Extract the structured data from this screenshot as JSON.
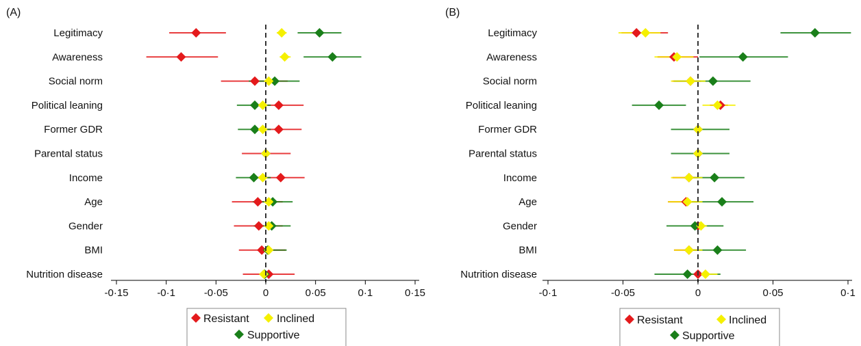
{
  "chart_data": [
    {
      "type": "scatter",
      "panel_label": "(A)",
      "rows": [
        "Legitimacy",
        "Awareness",
        "Social norm",
        "Political leaning",
        "Former GDR",
        "Parental status",
        "Income",
        "Age",
        "Gender",
        "BMI",
        "Nutrition disease"
      ],
      "xlim": [
        -0.15,
        0.15
      ],
      "xticks": [
        -0.15,
        -0.1,
        -0.05,
        0,
        0.05,
        0.1,
        0.15
      ],
      "xtick_labels": [
        "-0·15",
        "-0·1",
        "-0·05",
        "0",
        "0·05",
        "0·1",
        "0·15"
      ],
      "series": [
        {
          "name": "Resistant",
          "color": "#e41a1c",
          "values": [
            -0.07,
            -0.085,
            -0.011,
            0.013,
            0.013,
            0.0,
            0.015,
            -0.008,
            -0.007,
            -0.004,
            0.003
          ],
          "lower": [
            -0.097,
            -0.12,
            -0.045,
            -0.012,
            -0.011,
            -0.024,
            -0.009,
            -0.034,
            -0.032,
            -0.027,
            -0.023
          ],
          "upper": [
            -0.04,
            -0.048,
            0.022,
            0.038,
            0.036,
            0.025,
            0.039,
            0.017,
            0.017,
            0.02,
            0.029
          ]
        },
        {
          "name": "Inclined",
          "color": "#f5f000",
          "values": [
            0.016,
            0.019,
            0.003,
            -0.003,
            -0.003,
            0.0,
            -0.003,
            0.003,
            0.003,
            0.003,
            -0.002
          ],
          "lower": [
            0.011,
            0.014,
            0.0,
            -0.007,
            -0.007,
            -0.003,
            -0.007,
            0.0,
            0.0,
            0.0,
            -0.005
          ],
          "upper": [
            0.021,
            0.025,
            0.006,
            0.001,
            0.001,
            0.003,
            0.001,
            0.006,
            0.006,
            0.006,
            0.001
          ]
        },
        {
          "name": "Supportive",
          "color": "#1a7f1a",
          "values": [
            0.054,
            0.067,
            0.009,
            -0.011,
            -0.011,
            0.0,
            -0.012,
            0.007,
            0.006,
            0.002,
            -0.001
          ],
          "lower": [
            0.032,
            0.038,
            -0.017,
            -0.029,
            -0.028,
            -0.002,
            -0.03,
            -0.013,
            -0.012,
            -0.004,
            -0.004
          ],
          "upper": [
            0.076,
            0.096,
            0.034,
            0.005,
            0.005,
            0.002,
            0.005,
            0.027,
            0.025,
            0.021,
            0.003
          ]
        }
      ],
      "reference_line": 0,
      "legend": {
        "entries": [
          "Resistant",
          "Inclined",
          "Supportive"
        ],
        "position": "bottom"
      }
    },
    {
      "type": "scatter",
      "panel_label": "(B)",
      "rows": [
        "Legitimacy",
        "Awareness",
        "Social norm",
        "Political leaning",
        "Former GDR",
        "Parental status",
        "Income",
        "Age",
        "Gender",
        "BMI",
        "Nutrition disease"
      ],
      "xlim": [
        -0.1,
        0.1
      ],
      "xticks": [
        -0.1,
        -0.05,
        0,
        0.05,
        0.1
      ],
      "xtick_labels": [
        "-0·1",
        "-0·05",
        "0",
        "0·05",
        "0·1"
      ],
      "series": [
        {
          "name": "Resistant",
          "color": "#e41a1c",
          "values": [
            -0.041,
            -0.016,
            -0.005,
            0.015,
            0.0,
            0.0,
            -0.006,
            -0.008,
            0.0,
            -0.006,
            0.0
          ],
          "lower": [
            -0.051,
            -0.027,
            -0.017,
            0.008,
            -0.002,
            -0.002,
            -0.017,
            -0.02,
            -0.002,
            -0.016,
            -0.002
          ],
          "upper": [
            -0.02,
            0.0,
            0.002,
            0.02,
            0.002,
            0.002,
            0.0,
            0.0,
            0.002,
            0.0,
            0.002
          ]
        },
        {
          "name": "Inclined",
          "color": "#f5f000",
          "values": [
            -0.035,
            -0.014,
            -0.005,
            0.013,
            0.0,
            0.0,
            -0.006,
            -0.007,
            0.002,
            -0.006,
            0.005
          ],
          "lower": [
            -0.053,
            -0.029,
            -0.018,
            0.003,
            -0.002,
            -0.002,
            -0.018,
            -0.02,
            -0.002,
            -0.016,
            -0.002
          ],
          "upper": [
            -0.025,
            -0.003,
            0.005,
            0.025,
            0.002,
            0.002,
            0.003,
            0.003,
            0.006,
            0.003,
            0.013
          ]
        },
        {
          "name": "Supportive",
          "color": "#1a7f1a",
          "values": [
            0.078,
            0.03,
            0.01,
            -0.026,
            0.0,
            0.0,
            0.011,
            0.016,
            -0.002,
            0.013,
            -0.007
          ],
          "lower": [
            0.055,
            0.001,
            -0.016,
            -0.044,
            -0.018,
            -0.018,
            -0.009,
            -0.007,
            -0.021,
            -0.006,
            -0.029
          ],
          "upper": [
            0.102,
            0.06,
            0.035,
            -0.008,
            0.021,
            0.021,
            0.031,
            0.037,
            0.017,
            0.032,
            0.015
          ]
        }
      ],
      "reference_line": 0,
      "legend": {
        "entries": [
          "Resistant",
          "Inclined",
          "Supportive"
        ],
        "position": "bottom"
      }
    }
  ]
}
